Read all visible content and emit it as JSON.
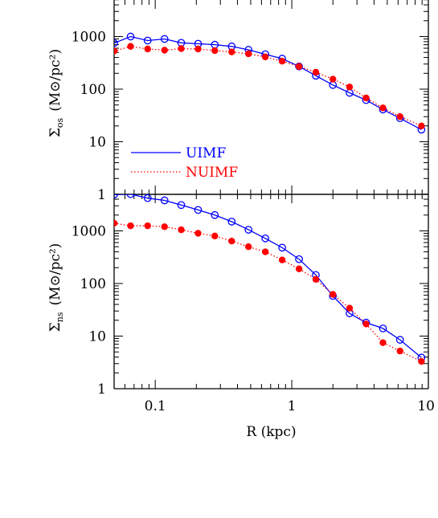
{
  "chart_data": [
    {
      "type": "line",
      "ylabel": "Σos (M⊙/pc²)",
      "ylabel_main": "Σ",
      "ylabel_sub": "os",
      "ylabel_rest": "(M⊙/pc²)",
      "xscale": "log",
      "yscale": "log",
      "xlim": [
        0.05,
        10
      ],
      "ylim": [
        1,
        6000
      ],
      "ytick_labels": [
        "1",
        "10",
        "100",
        "1000"
      ],
      "grid": false,
      "legend": {
        "placement": "bottom-left",
        "entries": [
          "UIMF",
          "NUIMF"
        ]
      },
      "series": [
        {
          "name": "UIMF",
          "color": "#0000ff",
          "marker": "open-circle",
          "line": "solid",
          "x": [
            0.05,
            0.066,
            0.088,
            0.117,
            0.155,
            0.206,
            0.273,
            0.363,
            0.482,
            0.64,
            0.85,
            1.13,
            1.5,
            2.0,
            2.65,
            3.5,
            4.65,
            6.2,
            8.9
          ],
          "y": [
            750,
            1000,
            840,
            900,
            760,
            730,
            700,
            650,
            560,
            460,
            380,
            270,
            180,
            120,
            85,
            62,
            41,
            28,
            17
          ]
        },
        {
          "name": "NUIMF",
          "color": "#ff0000",
          "marker": "filled-circle",
          "line": "dotted",
          "x": [
            0.05,
            0.066,
            0.088,
            0.117,
            0.155,
            0.206,
            0.273,
            0.363,
            0.482,
            0.64,
            0.85,
            1.13,
            1.5,
            2.0,
            2.65,
            3.5,
            4.65,
            6.2,
            8.9
          ],
          "y": [
            530,
            650,
            580,
            550,
            590,
            580,
            540,
            510,
            470,
            410,
            340,
            270,
            210,
            155,
            110,
            68,
            44,
            30,
            20
          ]
        }
      ]
    },
    {
      "type": "line",
      "ylabel": "Σns (M⊙/pc²)",
      "ylabel_main": "Σ",
      "ylabel_sub": "ns",
      "ylabel_rest": "(M⊙/pc²)",
      "xlabel": "R (kpc)",
      "xscale": "log",
      "yscale": "log",
      "xlim": [
        0.05,
        10
      ],
      "ylim": [
        1,
        6000
      ],
      "xtick_labels": [
        "0.1",
        "1",
        "10"
      ],
      "ytick_labels": [
        "1",
        "10",
        "100",
        "1000"
      ],
      "grid": false,
      "series": [
        {
          "name": "UIMF",
          "color": "#0000ff",
          "marker": "open-circle",
          "line": "solid",
          "x": [
            0.05,
            0.066,
            0.088,
            0.117,
            0.155,
            0.206,
            0.273,
            0.363,
            0.482,
            0.64,
            0.85,
            1.13,
            1.5,
            2.0,
            2.65,
            3.5,
            4.65,
            6.2,
            8.9
          ],
          "y": [
            4900,
            5000,
            4200,
            3800,
            3100,
            2500,
            2000,
            1500,
            1050,
            720,
            480,
            290,
            145,
            58,
            27,
            18,
            14,
            8.5,
            3.9
          ]
        },
        {
          "name": "NUIMF",
          "color": "#ff0000",
          "marker": "filled-circle",
          "line": "dotted",
          "x": [
            0.05,
            0.066,
            0.088,
            0.117,
            0.155,
            0.206,
            0.273,
            0.363,
            0.482,
            0.64,
            0.85,
            1.13,
            1.5,
            2.0,
            2.65,
            3.5,
            4.65,
            6.2,
            8.9
          ],
          "y": [
            1400,
            1250,
            1250,
            1200,
            1050,
            900,
            800,
            640,
            500,
            400,
            280,
            190,
            120,
            62,
            34,
            17,
            7.5,
            5.2,
            3.3
          ]
        }
      ]
    }
  ]
}
